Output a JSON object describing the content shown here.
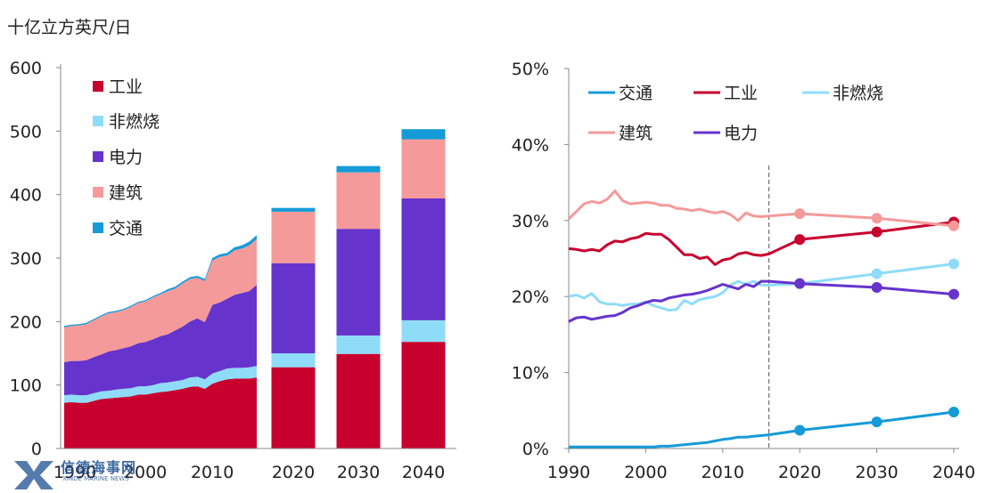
{
  "unit_label": "十亿立方英尺/日",
  "watermark": {
    "name": "信德海事网",
    "sub": "XINDE MARINE NEWS",
    "logo": "XD"
  },
  "colors": {
    "industry": "#c8002e",
    "non_combustion": "#8fdcf8",
    "power": "#6633cc",
    "buildings": "#f59a9a",
    "transport": "#159bd8"
  },
  "chart_data": [
    {
      "type": "area",
      "stacked": true,
      "ylim": [
        0,
        600
      ],
      "yticks": [
        0,
        100,
        200,
        300,
        400,
        500,
        600
      ],
      "x_ticks": [
        "1990",
        "2000",
        "2010",
        "2020",
        "2030",
        "2040"
      ],
      "legend": [
        "工业",
        "非燃烧",
        "电力",
        "建筑",
        "交通"
      ],
      "legend_position": "top-left",
      "grid": false,
      "history": {
        "x": [
          1990,
          1991,
          1992,
          1993,
          1994,
          1995,
          1996,
          1997,
          1998,
          1999,
          2000,
          2001,
          2002,
          2003,
          2004,
          2005,
          2006,
          2007,
          2008,
          2009,
          2010,
          2011,
          2012,
          2013,
          2014,
          2015,
          2016
        ],
        "series": [
          {
            "name": "工业",
            "key": "industry",
            "values": [
              72,
              73,
              72,
              72,
              75,
              78,
              79,
              80,
              81,
              82,
              85,
              85,
              87,
              89,
              90,
              92,
              94,
              97,
              98,
              94,
              102,
              106,
              109,
              110,
              110,
              110,
              112
            ]
          },
          {
            "name": "非燃烧",
            "key": "non_combustion",
            "values": [
              12,
              12,
              12,
              12,
              12,
              12,
              12,
              13,
              13,
              13,
              13,
              13,
              13,
              14,
              14,
              14,
              14,
              15,
              15,
              15,
              16,
              16,
              17,
              17,
              17,
              18,
              18
            ]
          },
          {
            "name": "电力",
            "key": "power",
            "values": [
              52,
              53,
              54,
              55,
              57,
              58,
              62,
              62,
              64,
              66,
              68,
              70,
              72,
              74,
              76,
              80,
              84,
              88,
              92,
              90,
              108,
              108,
              110,
              115,
              118,
              120,
              128
            ]
          },
          {
            "name": "建筑",
            "key": "buildings",
            "values": [
              55,
              55,
              56,
              57,
              58,
              60,
              60,
              60,
              60,
              62,
              63,
              64,
              66,
              66,
              68,
              66,
              68,
              67,
              64,
              65,
              70,
              72,
              68,
              70,
              70,
              72,
              72
            ]
          },
          {
            "name": "交通",
            "key": "transport",
            "values": [
              2,
              2,
              2,
              2,
              2,
              2,
              2,
              2,
              2,
              2,
              2,
              2,
              2,
              2,
              3,
              3,
              3,
              3,
              3,
              3,
              4,
              4,
              4,
              5,
              5,
              6,
              6
            ]
          }
        ]
      },
      "projection": {
        "x": [
          "2020",
          "2030",
          "2040"
        ],
        "series": [
          {
            "name": "工业",
            "key": "industry",
            "values": [
              128,
              149,
              168
            ]
          },
          {
            "name": "非燃烧",
            "key": "non_combustion",
            "values": [
              22,
              29,
              34
            ]
          },
          {
            "name": "电力",
            "key": "power",
            "values": [
              142,
              168,
              192
            ]
          },
          {
            "name": "建筑",
            "key": "buildings",
            "values": [
              81,
              89,
              93
            ]
          },
          {
            "name": "交通",
            "key": "transport",
            "values": [
              6,
              10,
              16
            ]
          }
        ]
      }
    },
    {
      "type": "line",
      "ylim": [
        0,
        50
      ],
      "yticks": [
        "0%",
        "10%",
        "20%",
        "30%",
        "40%",
        "50%"
      ],
      "xlim": [
        1990,
        2040
      ],
      "x_ticks": [
        "1990",
        "2000",
        "2010",
        "2020",
        "2030",
        "2040"
      ],
      "legend": [
        "交通",
        "工业",
        "非燃烧",
        "建筑",
        "电力"
      ],
      "legend_position": "top",
      "divider_year": 2016,
      "grid": false,
      "history_x": [
        1990,
        1991,
        1992,
        1993,
        1994,
        1995,
        1996,
        1997,
        1998,
        1999,
        2000,
        2001,
        2002,
        2003,
        2004,
        2005,
        2006,
        2007,
        2008,
        2009,
        2010,
        2011,
        2012,
        2013,
        2014,
        2015,
        2016
      ],
      "projection_x": [
        2020,
        2030,
        2040
      ],
      "series": [
        {
          "name": "交通",
          "key": "transport",
          "history": [
            0.2,
            0.2,
            0.2,
            0.2,
            0.2,
            0.2,
            0.2,
            0.2,
            0.2,
            0.2,
            0.2,
            0.2,
            0.3,
            0.3,
            0.4,
            0.5,
            0.6,
            0.7,
            0.8,
            1.0,
            1.2,
            1.3,
            1.5,
            1.5,
            1.6,
            1.7,
            1.8
          ],
          "projection": [
            2.4,
            3.5,
            4.8
          ]
        },
        {
          "name": "工业",
          "key": "industry",
          "history": [
            26.3,
            26.2,
            26.0,
            26.2,
            26.0,
            26.8,
            27.3,
            27.2,
            27.6,
            27.8,
            28.3,
            28.2,
            28.2,
            27.5,
            26.5,
            25.5,
            25.5,
            25.0,
            25.2,
            24.2,
            24.8,
            25.0,
            25.6,
            25.8,
            25.5,
            25.4,
            25.6
          ],
          "projection": [
            27.5,
            28.5,
            29.8
          ]
        },
        {
          "name": "非燃烧",
          "key": "non_combustion",
          "history": [
            20.0,
            20.2,
            19.8,
            20.4,
            19.3,
            19.0,
            19.0,
            18.8,
            19.0,
            19.0,
            19.3,
            18.8,
            18.5,
            18.2,
            18.3,
            19.5,
            19.0,
            19.6,
            19.8,
            20.0,
            20.5,
            21.5,
            22.0,
            21.6,
            22.0,
            21.5,
            21.5
          ],
          "projection": [
            21.7,
            23.0,
            24.3
          ]
        },
        {
          "name": "建筑",
          "key": "buildings",
          "history": [
            30.2,
            31.2,
            32.2,
            32.5,
            32.3,
            32.8,
            33.9,
            32.6,
            32.2,
            32.3,
            32.4,
            32.3,
            32.0,
            32.0,
            31.6,
            31.5,
            31.3,
            31.5,
            31.2,
            31.0,
            31.2,
            30.8,
            30.0,
            31.0,
            30.6,
            30.5,
            30.6
          ],
          "projection": [
            30.9,
            30.3,
            29.3
          ]
        },
        {
          "name": "电力",
          "key": "power",
          "history": [
            16.7,
            17.2,
            17.3,
            17.0,
            17.2,
            17.4,
            17.5,
            17.9,
            18.5,
            18.8,
            19.2,
            19.5,
            19.4,
            19.8,
            20.0,
            20.2,
            20.3,
            20.5,
            20.8,
            21.2,
            21.6,
            21.3,
            21.0,
            21.6,
            21.3,
            22.0,
            22.0
          ],
          "projection": [
            21.7,
            21.2,
            20.3
          ]
        }
      ]
    }
  ]
}
